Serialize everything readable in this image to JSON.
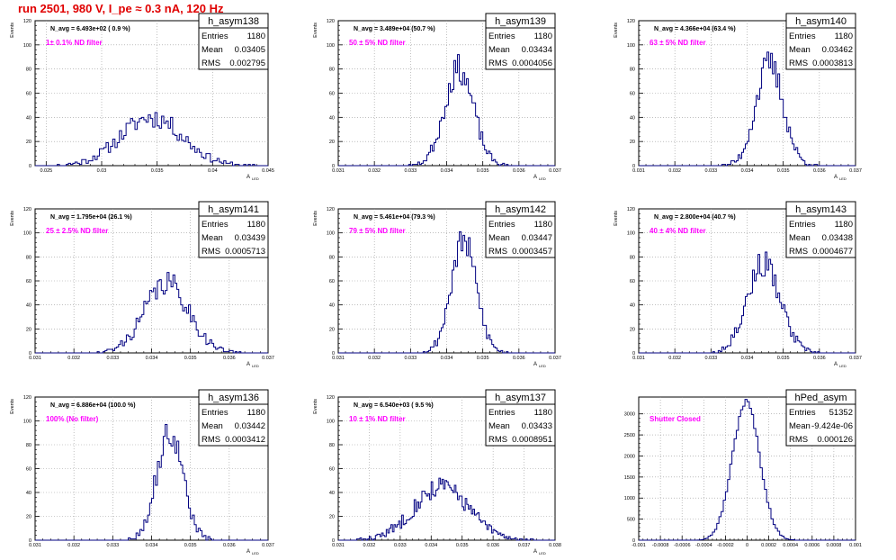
{
  "page_title": "run 2501,   980 V, I_pe ≈ 0.3 nA, 120 Hz",
  "stat_labels": {
    "entries": "Entries",
    "mean": "Mean",
    "rms": "RMS"
  },
  "chart_data": [
    {
      "type": "bar",
      "name": "h_asym138",
      "navg": "N_avg = 6.493e+02 ( 0.9 %)",
      "filter": "1± 0.1% ND filter",
      "entries": "1180",
      "mean": "0.03405",
      "rms": "0.002795",
      "ylabel": "Events",
      "xlabel": "A",
      "xlabel_sub": "LED",
      "xlim": [
        0.024,
        0.045
      ],
      "ylim": [
        0,
        120
      ],
      "xticks": [
        0.025,
        0.03,
        0.035,
        0.04,
        0.045
      ],
      "xtick_labels": [
        "0.025",
        "0.03",
        "0.035",
        "0.04",
        "0.045"
      ],
      "yticks": [
        0,
        20,
        40,
        60,
        80,
        100,
        120
      ],
      "peak": 40,
      "peak_x": 0.0345,
      "sigma": 0.0028,
      "bin": 0.0002,
      "seed": 11
    },
    {
      "type": "bar",
      "name": "h_asym139",
      "navg": "N_avg = 3.489e+04 (50.7 %)",
      "filter": "50 ± 5% ND filter",
      "entries": "1180",
      "mean": "0.03434",
      "rms": "0.0004056",
      "ylabel": "Events",
      "xlabel": "A",
      "xlabel_sub": "LED",
      "xlim": [
        0.031,
        0.037
      ],
      "ylim": [
        0,
        120
      ],
      "xticks": [
        0.031,
        0.032,
        0.033,
        0.034,
        0.035,
        0.036,
        0.037
      ],
      "xtick_labels": [
        "0.031",
        "0.032",
        "0.033",
        "0.034",
        "0.035",
        "0.036",
        "0.037"
      ],
      "yticks": [
        0,
        20,
        40,
        60,
        80,
        100,
        120
      ],
      "peak": 80,
      "peak_x": 0.03434,
      "sigma": 0.0004,
      "bin": 5e-05,
      "seed": 23
    },
    {
      "type": "bar",
      "name": "h_asym140",
      "navg": "N_avg = 4.366e+04 (63.4 %)",
      "filter": "63 ± 5% ND filter",
      "entries": "1180",
      "mean": "0.03462",
      "rms": "0.0003813",
      "ylabel": "Events",
      "xlabel": "A",
      "xlabel_sub": "LED",
      "xlim": [
        0.031,
        0.037
      ],
      "ylim": [
        0,
        120
      ],
      "xticks": [
        0.031,
        0.032,
        0.033,
        0.034,
        0.035,
        0.036,
        0.037
      ],
      "xtick_labels": [
        "0.031",
        "0.032",
        "0.033",
        "0.034",
        "0.035",
        "0.036",
        "0.037"
      ],
      "yticks": [
        0,
        20,
        40,
        60,
        80,
        100,
        120
      ],
      "peak": 84,
      "peak_x": 0.03462,
      "sigma": 0.00038,
      "bin": 5e-05,
      "seed": 37
    },
    {
      "type": "bar",
      "name": "h_asym141",
      "navg": "N_avg = 1.795e+04 (26.1 %)",
      "filter": "25 ± 2.5% ND filter",
      "entries": "1180",
      "mean": "0.03439",
      "rms": "0.0005713",
      "ylabel": "Events",
      "xlabel": "A",
      "xlabel_sub": "LED",
      "xlim": [
        0.031,
        0.037
      ],
      "ylim": [
        0,
        120
      ],
      "xticks": [
        0.031,
        0.032,
        0.033,
        0.034,
        0.035,
        0.036,
        0.037
      ],
      "xtick_labels": [
        "0.031",
        "0.032",
        "0.033",
        "0.034",
        "0.035",
        "0.036",
        "0.037"
      ],
      "yticks": [
        0,
        20,
        40,
        60,
        80,
        100,
        120
      ],
      "peak": 58,
      "peak_x": 0.03439,
      "sigma": 0.00057,
      "bin": 5e-05,
      "seed": 41
    },
    {
      "type": "bar",
      "name": "h_asym142",
      "navg": "N_avg = 5.461e+04 (79.3 %)",
      "filter": "79 ± 5% ND filter",
      "entries": "1180",
      "mean": "0.03447",
      "rms": "0.0003457",
      "ylabel": "Events",
      "xlabel": "A",
      "xlabel_sub": "LED",
      "xlim": [
        0.031,
        0.037
      ],
      "ylim": [
        0,
        120
      ],
      "xticks": [
        0.031,
        0.032,
        0.033,
        0.034,
        0.035,
        0.036,
        0.037
      ],
      "xtick_labels": [
        "0.031",
        "0.032",
        "0.033",
        "0.034",
        "0.035",
        "0.036",
        "0.037"
      ],
      "yticks": [
        0,
        20,
        40,
        60,
        80,
        100,
        120
      ],
      "peak": 93,
      "peak_x": 0.03447,
      "sigma": 0.00035,
      "bin": 5e-05,
      "seed": 53
    },
    {
      "type": "bar",
      "name": "h_asym143",
      "navg": "N_avg = 2.800e+04 (40.7 %)",
      "filter": "40 ± 4% ND filter",
      "entries": "1180",
      "mean": "0.03438",
      "rms": "0.0004677",
      "ylabel": "Events",
      "xlabel": "A",
      "xlabel_sub": "LED",
      "xlim": [
        0.031,
        0.037
      ],
      "ylim": [
        0,
        120
      ],
      "xticks": [
        0.031,
        0.032,
        0.033,
        0.034,
        0.035,
        0.036,
        0.037
      ],
      "xtick_labels": [
        "0.031",
        "0.032",
        "0.033",
        "0.034",
        "0.035",
        "0.036",
        "0.037"
      ],
      "yticks": [
        0,
        20,
        40,
        60,
        80,
        100,
        120
      ],
      "peak": 74,
      "peak_x": 0.03445,
      "sigma": 0.00046,
      "bin": 5e-05,
      "seed": 67
    },
    {
      "type": "bar",
      "name": "h_asym136",
      "navg": "N_avg = 6.886e+04 (100.0 %)",
      "filter": "100% (No filter)",
      "entries": "1180",
      "mean": "0.03442",
      "rms": "0.0003412",
      "ylabel": "Events",
      "xlabel": "A",
      "xlabel_sub": "LED",
      "xlim": [
        0.031,
        0.037
      ],
      "ylim": [
        0,
        120
      ],
      "xticks": [
        0.031,
        0.032,
        0.033,
        0.034,
        0.035,
        0.036,
        0.037
      ],
      "xtick_labels": [
        "0.031",
        "0.032",
        "0.033",
        "0.034",
        "0.035",
        "0.036",
        "0.037"
      ],
      "yticks": [
        0,
        20,
        40,
        60,
        80,
        100,
        120
      ],
      "peak": 90,
      "peak_x": 0.03447,
      "sigma": 0.00034,
      "bin": 5e-05,
      "seed": 79
    },
    {
      "type": "bar",
      "name": "h_asym137",
      "navg": "N_avg = 6.540e+03 ( 9.5 %)",
      "filter": "10 ± 1% ND filter",
      "entries": "1180",
      "mean": "0.03433",
      "rms": "0.0008951",
      "ylabel": "Events",
      "xlabel": "A",
      "xlabel_sub": "LED",
      "xlim": [
        0.031,
        0.038
      ],
      "ylim": [
        0,
        120
      ],
      "xticks": [
        0.031,
        0.032,
        0.033,
        0.034,
        0.035,
        0.036,
        0.037,
        0.038
      ],
      "xtick_labels": [
        "0.031",
        "0.032",
        "0.033",
        "0.034",
        "0.035",
        "0.036",
        "0.037",
        "0.038"
      ],
      "yticks": [
        0,
        20,
        40,
        60,
        80,
        100,
        120
      ],
      "peak": 45,
      "peak_x": 0.03433,
      "sigma": 0.00089,
      "bin": 5e-05,
      "seed": 83
    },
    {
      "type": "bar",
      "name": "hPed_asym",
      "navg": "",
      "filter": "Shutter Closed",
      "entries": "51352",
      "mean": "-9.424e-06",
      "rms": "0.000126",
      "ylabel": "",
      "xlabel": "",
      "xlabel_sub": "",
      "xlim": [
        -0.001,
        0.001
      ],
      "ylim": [
        0,
        3400
      ],
      "xticks": [
        -0.001,
        -0.0008,
        -0.0006,
        -0.0004,
        -0.0002,
        0,
        0.0002,
        0.0004,
        0.0006,
        0.0008,
        0.001
      ],
      "xtick_labels": [
        "-0.001",
        "-0.0008",
        "-0.0006",
        "-0.0004",
        "-0.0002",
        "0",
        "0.0002",
        "0.0004",
        "0.0006",
        "0.0008",
        "0.001"
      ],
      "yticks": [
        0,
        500,
        1000,
        1500,
        2000,
        2500,
        3000
      ],
      "peak": 3280,
      "peak_x": -9.4e-06,
      "sigma": 0.000126,
      "bin": 2e-05,
      "seed": 97
    }
  ]
}
